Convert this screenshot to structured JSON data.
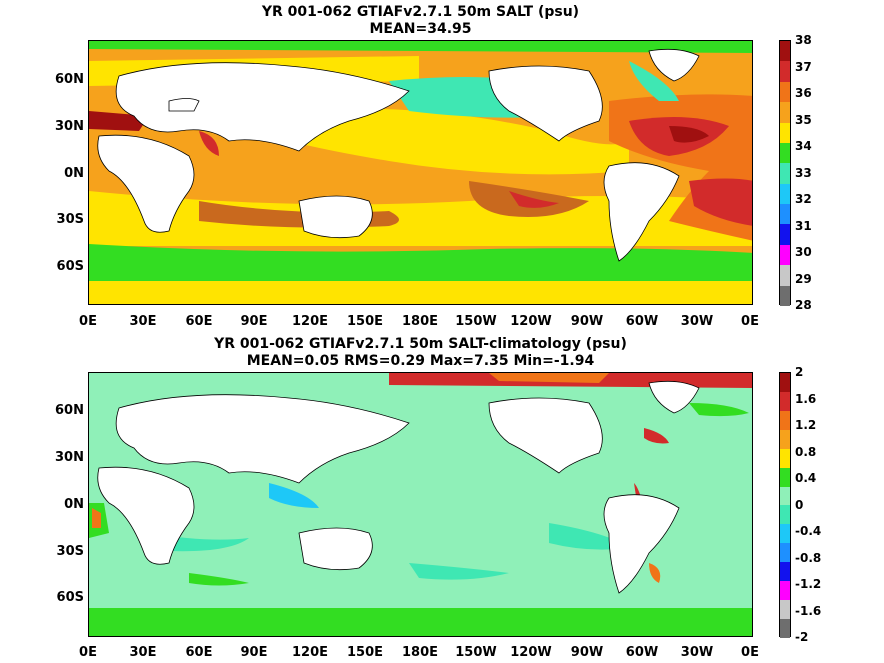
{
  "panels": [
    {
      "title1": "YR 001-062 GTIAFv2.7.1 50m SALT (psu)",
      "title2": "MEAN=34.95",
      "colorbar": {
        "labels": [
          "38",
          "37",
          "36",
          "35",
          "34",
          "33",
          "32",
          "31",
          "30",
          "29",
          "28"
        ],
        "colors": [
          "#a01010",
          "#d22b2b",
          "#f07418",
          "#f6a21c",
          "#ffe400",
          "#33dd22",
          "#3fe7b3",
          "#1ec8f7",
          "#1e90ff",
          "#1212ee",
          "#ff00ff",
          "#c8c8c8",
          "#6e6e6e"
        ]
      }
    },
    {
      "title1": "YR 001-062 GTIAFv2.7.1 50m SALT-climatology (psu)",
      "title2": "MEAN=0.05   RMS=0.29   Max=7.35   Min=-1.94",
      "colorbar": {
        "labels": [
          "2",
          "1.6",
          "1.2",
          "0.8",
          "0.4",
          "0",
          "-0.4",
          "-0.8",
          "-1.2",
          "-1.6",
          "-2"
        ],
        "colors": [
          "#a01010",
          "#d22b2b",
          "#f07418",
          "#f6a21c",
          "#ffe400",
          "#33dd22",
          "#8ff0b8",
          "#3fe7b3",
          "#1ec8f7",
          "#1e90ff",
          "#1212ee",
          "#ff00ff",
          "#c8c8c8",
          "#6e6e6e"
        ]
      }
    }
  ],
  "lat_labels": [
    "60N",
    "30N",
    "0N",
    "30S",
    "60S"
  ],
  "lon_labels": [
    "0E",
    "30E",
    "60E",
    "90E",
    "120E",
    "150E",
    "180E",
    "150W",
    "120W",
    "90W",
    "60W",
    "30W",
    "0E"
  ]
}
